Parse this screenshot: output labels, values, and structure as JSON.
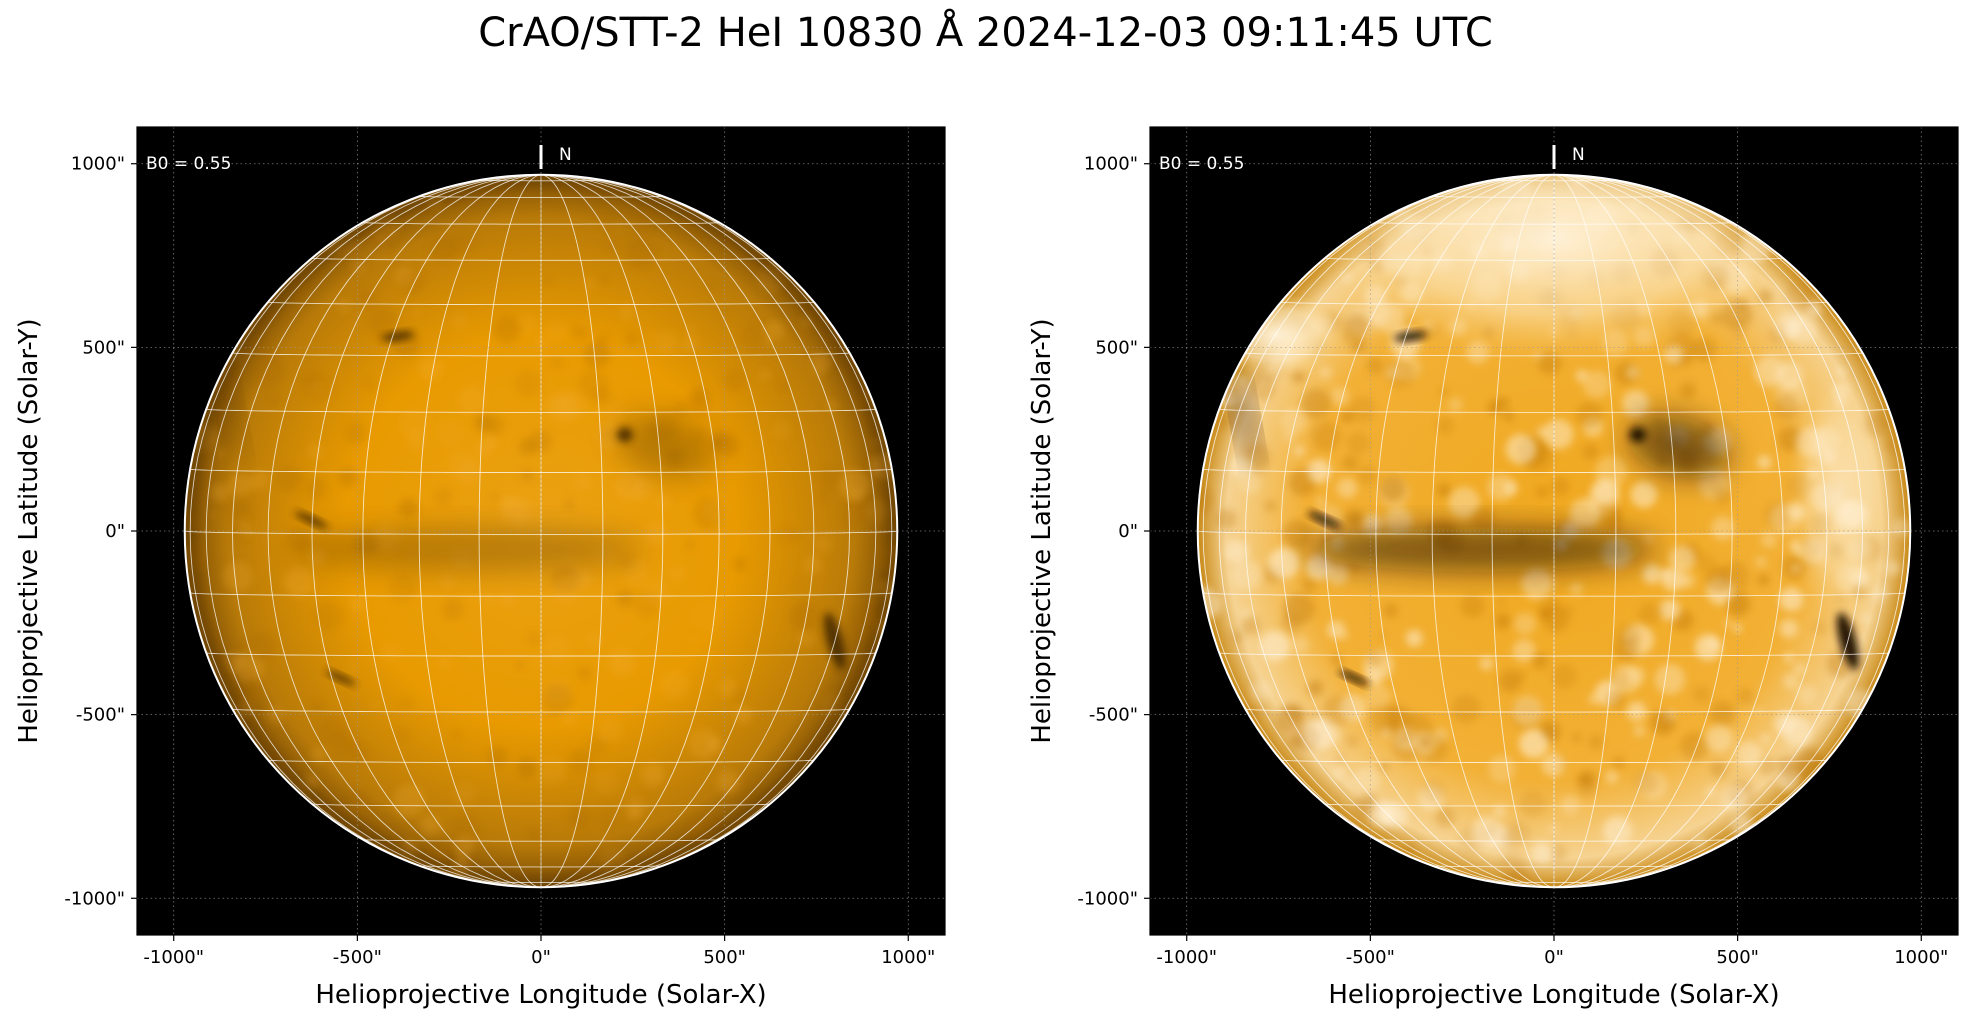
{
  "figure": {
    "title": "CrAO/STT-2 HeI 10830 Å 2024-12-03 09:11:45 UTC"
  },
  "colors": {
    "background": "#000000",
    "disk_core": "#e89a00",
    "disk_limb": "#7a4c05",
    "enhanced_highlight": "#fff3dc",
    "grid_line": "#ffffff",
    "frame": "#000000"
  },
  "panels": [
    {
      "id": "original",
      "annotation": "B0 = 0.55",
      "north_label": "N",
      "xlabel": "Helioprojective Longitude (Solar-X)",
      "ylabel": "Helioprojective Latitude (Solar-Y)",
      "xticks": [
        {
          "value": -1000,
          "label": "-1000\""
        },
        {
          "value": -500,
          "label": "-500\""
        },
        {
          "value": 0,
          "label": "0\""
        },
        {
          "value": 500,
          "label": "500\""
        },
        {
          "value": 1000,
          "label": "1000\""
        }
      ],
      "yticks": [
        {
          "value": 1000,
          "label": "1000\""
        },
        {
          "value": 500,
          "label": "500\""
        },
        {
          "value": 0,
          "label": "0\""
        },
        {
          "value": -500,
          "label": "-500\""
        },
        {
          "value": -1000,
          "label": "-1000\""
        }
      ],
      "xlim": [
        -1100,
        1100
      ],
      "ylim": [
        -1100,
        1100
      ],
      "solar_radius_arcsec": 970,
      "style": "original"
    },
    {
      "id": "enhanced",
      "annotation": "B0 = 0.55",
      "north_label": "N",
      "xlabel": "Helioprojective Longitude (Solar-X)",
      "ylabel": "Helioprojective Latitude (Solar-Y)",
      "xticks": [
        {
          "value": -1000,
          "label": "-1000\""
        },
        {
          "value": -500,
          "label": "-500\""
        },
        {
          "value": 0,
          "label": "0\""
        },
        {
          "value": 500,
          "label": "500\""
        },
        {
          "value": 1000,
          "label": "1000\""
        }
      ],
      "yticks": [
        {
          "value": 1000,
          "label": "1000\""
        },
        {
          "value": 500,
          "label": "500\""
        },
        {
          "value": 0,
          "label": "0\""
        },
        {
          "value": -500,
          "label": "-500\""
        },
        {
          "value": -1000,
          "label": "-1000\""
        }
      ],
      "xlim": [
        -1100,
        1100
      ],
      "ylim": [
        -1100,
        1100
      ],
      "solar_radius_arcsec": 970,
      "style": "enhanced"
    }
  ],
  "features": [
    {
      "name": "filament-northeast",
      "x": -390,
      "y": 530,
      "rx": 45,
      "ry": 12,
      "rot": 8
    },
    {
      "name": "sunspot",
      "x": 228,
      "y": 262,
      "rx": 22,
      "ry": 20,
      "rot": 0
    },
    {
      "name": "filament-east-equator",
      "x": -625,
      "y": 30,
      "rx": 50,
      "ry": 10,
      "rot": -25
    },
    {
      "name": "filament-west-limb",
      "x": 800,
      "y": -300,
      "rx": 22,
      "ry": 80,
      "rot": 15
    },
    {
      "name": "filament-south-east",
      "x": -545,
      "y": -400,
      "rx": 45,
      "ry": 9,
      "rot": -25
    },
    {
      "name": "east-limb-plage",
      "x": -840,
      "y": 300,
      "rx": 22,
      "ry": 110,
      "rot": 10
    },
    {
      "name": "equatorial-active-band",
      "x": -200,
      "y": -50,
      "rx": 480,
      "ry": 60,
      "rot": 0
    },
    {
      "name": "north-plage-region",
      "x": 340,
      "y": 230,
      "rx": 140,
      "ry": 80,
      "rot": -15
    }
  ]
}
